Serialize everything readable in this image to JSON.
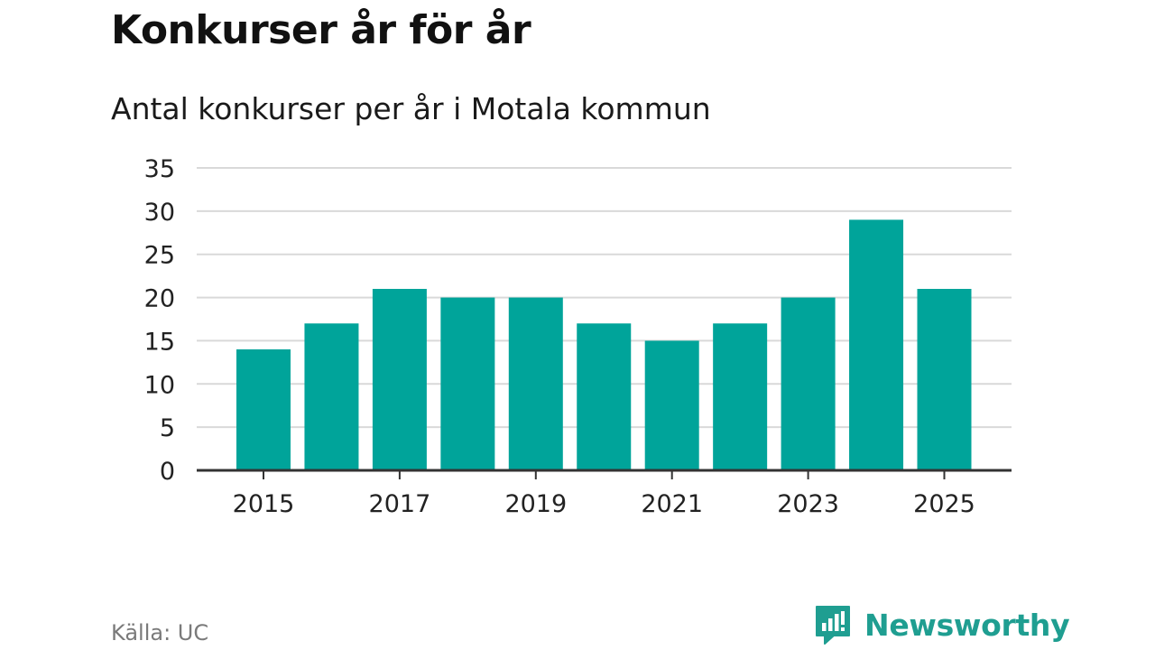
{
  "header": {
    "title": "Konkurser år för år",
    "subtitle": "Antal konkurser per år i Motala kommun"
  },
  "footer": {
    "source": "Källa: UC",
    "brand": "Newsworthy",
    "brand_icon": "newsworthy-logo-icon"
  },
  "colors": {
    "bar": "#00a49a",
    "grid": "#d9d9d9",
    "axis": "#333333",
    "brand": "#1f9e91"
  },
  "chart_data": {
    "type": "bar",
    "title": "Konkurser år för år",
    "subtitle": "Antal konkurser per år i Motala kommun",
    "xlabel": "",
    "ylabel": "",
    "categories": [
      "2015",
      "2016",
      "2017",
      "2018",
      "2019",
      "2020",
      "2021",
      "2022",
      "2023",
      "2024",
      "2025"
    ],
    "x_tick_labels": [
      "2015",
      "2017",
      "2019",
      "2021",
      "2023",
      "2025"
    ],
    "values": [
      14,
      17,
      21,
      20,
      20,
      17,
      15,
      17,
      20,
      29,
      21
    ],
    "ylim": [
      0,
      35
    ],
    "y_ticks": [
      0,
      5,
      10,
      15,
      20,
      25,
      30,
      35
    ],
    "grid": true
  }
}
